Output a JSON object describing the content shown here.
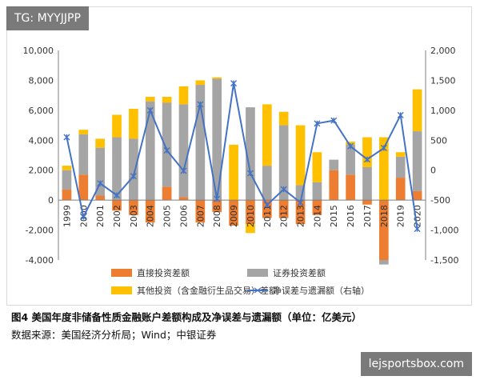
{
  "watermark": "TG: MYYJJPP",
  "caption": "图4   美国年度非储备性质金融账户差额构成及净误差与遗漏额（单位：亿美元）",
  "source": "数据来源：美国经济分析局；Wind；中银证券",
  "site_badge": "lejsportsbox.com",
  "chart_data": {
    "type": "bar",
    "stacked": true,
    "categories": [
      "1999",
      "2000",
      "2001",
      "2002",
      "2003",
      "2004",
      "2005",
      "2006",
      "2007",
      "2008",
      "2009",
      "2010",
      "2011",
      "2012",
      "2013",
      "2014",
      "2015",
      "2016",
      "2017",
      "2018",
      "2019",
      "2020"
    ],
    "series": [
      {
        "name": "直接投资差额",
        "color": "#ED7D31",
        "axis": "left",
        "values": [
          700,
          1700,
          300,
          -700,
          -1000,
          -1500,
          900,
          200,
          -1500,
          -800,
          -1700,
          -1600,
          -1200,
          -1200,
          -1600,
          -1000,
          2000,
          1700,
          -300,
          -4000,
          1500,
          600
        ]
      },
      {
        "name": "证券投资差额",
        "color": "#A5A5A5",
        "axis": "left",
        "values": [
          1300,
          2700,
          3200,
          4200,
          4100,
          6600,
          5600,
          6200,
          7700,
          8100,
          0,
          6200,
          2300,
          5000,
          1000,
          1200,
          700,
          2000,
          2200,
          -300,
          1400,
          4000
        ]
      },
      {
        "name": "其他投资（含金融衍生品交易）差额",
        "color": "#FFC000",
        "axis": "left",
        "values": [
          300,
          300,
          600,
          1500,
          2000,
          300,
          400,
          1200,
          300,
          100,
          3700,
          -600,
          4100,
          900,
          4000,
          2000,
          0,
          200,
          2000,
          4200,
          300,
          2800
        ]
      },
      {
        "name": "净误差与遗漏额（右轴）",
        "color": "#4472C4",
        "axis": "right",
        "kind": "line",
        "values": [
          550,
          -780,
          -220,
          -420,
          -100,
          1000,
          330,
          -10,
          1100,
          -480,
          1450,
          -50,
          -580,
          -320,
          -540,
          780,
          830,
          400,
          180,
          370,
          920,
          -980
        ]
      }
    ],
    "y_left": {
      "min": -4000,
      "max": 10000,
      "step": 2000,
      "ticks": [
        "-4,000",
        "-2,000",
        "0",
        "2,000",
        "4,000",
        "6,000",
        "8,000",
        "10,000"
      ]
    },
    "y_right": {
      "min": -1500,
      "max": 2000,
      "step": 500,
      "ticks": [
        "-1,500",
        "-1,000",
        "-500",
        "0",
        "500",
        "1,000",
        "1,500",
        "2,000"
      ]
    },
    "grid": false,
    "legend_position": "bottom"
  }
}
